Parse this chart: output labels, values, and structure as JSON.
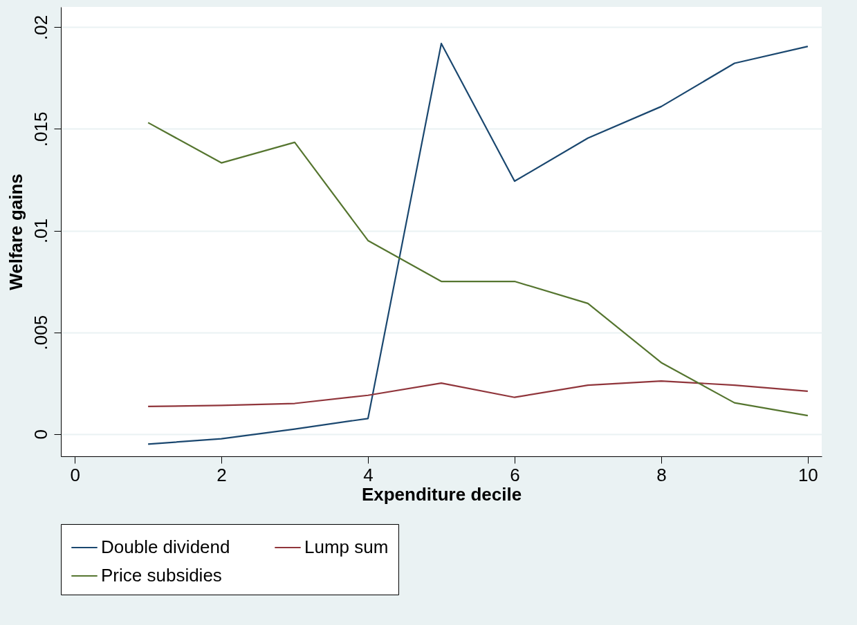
{
  "chart_data": {
    "type": "line",
    "xlabel": "Expenditure decile",
    "ylabel": "Welfare gains",
    "x": [
      1,
      2,
      3,
      4,
      5,
      6,
      7,
      8,
      9,
      10
    ],
    "series": [
      {
        "name": "Double dividend",
        "color": "#1a476f",
        "values": [
          -0.0005,
          -0.00024,
          0.00024,
          0.00076,
          0.0192,
          0.01243,
          0.01455,
          0.0161,
          0.01823,
          0.01906
        ]
      },
      {
        "name": "Lump sum",
        "color": "#90353b",
        "values": [
          0.00135,
          0.0014,
          0.0015,
          0.0019,
          0.0025,
          0.0018,
          0.0024,
          0.0026,
          0.0024,
          0.0021
        ]
      },
      {
        "name": "Price subsidies",
        "color": "#55752f",
        "values": [
          0.01531,
          0.01333,
          0.01434,
          0.00951,
          0.0075,
          0.0075,
          0.00642,
          0.00351,
          0.00153,
          0.0009
        ]
      }
    ],
    "xlim": [
      -0.19,
      10.19
    ],
    "xticks": [
      0,
      2,
      4,
      6,
      8,
      10
    ],
    "ylim": [
      -0.0011,
      0.021
    ],
    "yticks": [
      {
        "value": 0,
        "label": "0"
      },
      {
        "value": 0.005,
        "label": ".005"
      },
      {
        "value": 0.01,
        "label": ".01"
      },
      {
        "value": 0.015,
        "label": ".015"
      },
      {
        "value": 0.02,
        "label": ".02"
      }
    ],
    "grid": "y",
    "legend": "bottom"
  }
}
